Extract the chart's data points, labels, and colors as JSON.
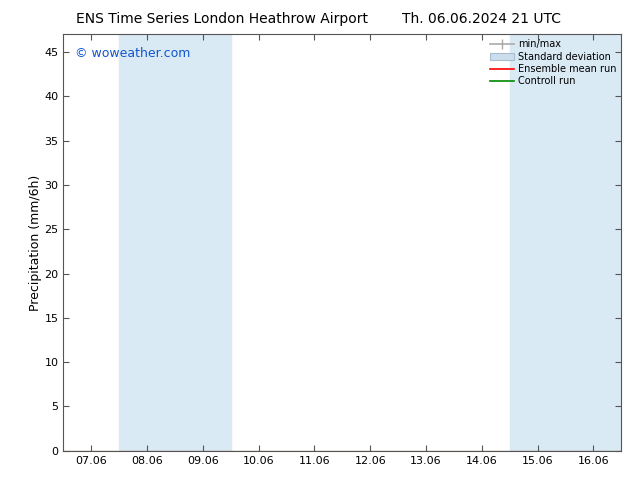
{
  "title_left": "ENS Time Series London Heathrow Airport",
  "title_right": "Th. 06.06.2024 21 UTC",
  "ylabel": "Precipitation (mm/6h)",
  "watermark": "© woweather.com",
  "x_tick_labels": [
    "07.06",
    "08.06",
    "09.06",
    "10.06",
    "11.06",
    "12.06",
    "13.06",
    "14.06",
    "15.06",
    "16.06"
  ],
  "x_tick_positions": [
    0,
    1,
    2,
    3,
    4,
    5,
    6,
    7,
    8,
    9
  ],
  "xlim": [
    -0.5,
    9.5
  ],
  "ylim": [
    0,
    47
  ],
  "yticks": [
    0,
    5,
    10,
    15,
    20,
    25,
    30,
    35,
    40,
    45
  ],
  "blue_bands": [
    [
      0.5,
      1.5
    ],
    [
      1.5,
      2.5
    ],
    [
      7.5,
      8.5
    ],
    [
      8.5,
      9.5
    ]
  ],
  "blue_band_color": "#daeaf5",
  "background_color": "#ffffff",
  "legend_labels": [
    "min/max",
    "Standard deviation",
    "Ensemble mean run",
    "Controll run"
  ],
  "legend_colors_line": [
    "#aaaaaa",
    "#cccccc",
    "#ff0000",
    "#008800"
  ],
  "title_fontsize": 10,
  "tick_fontsize": 8,
  "ylabel_fontsize": 9,
  "watermark_color": "#1155cc",
  "watermark_fontsize": 9
}
